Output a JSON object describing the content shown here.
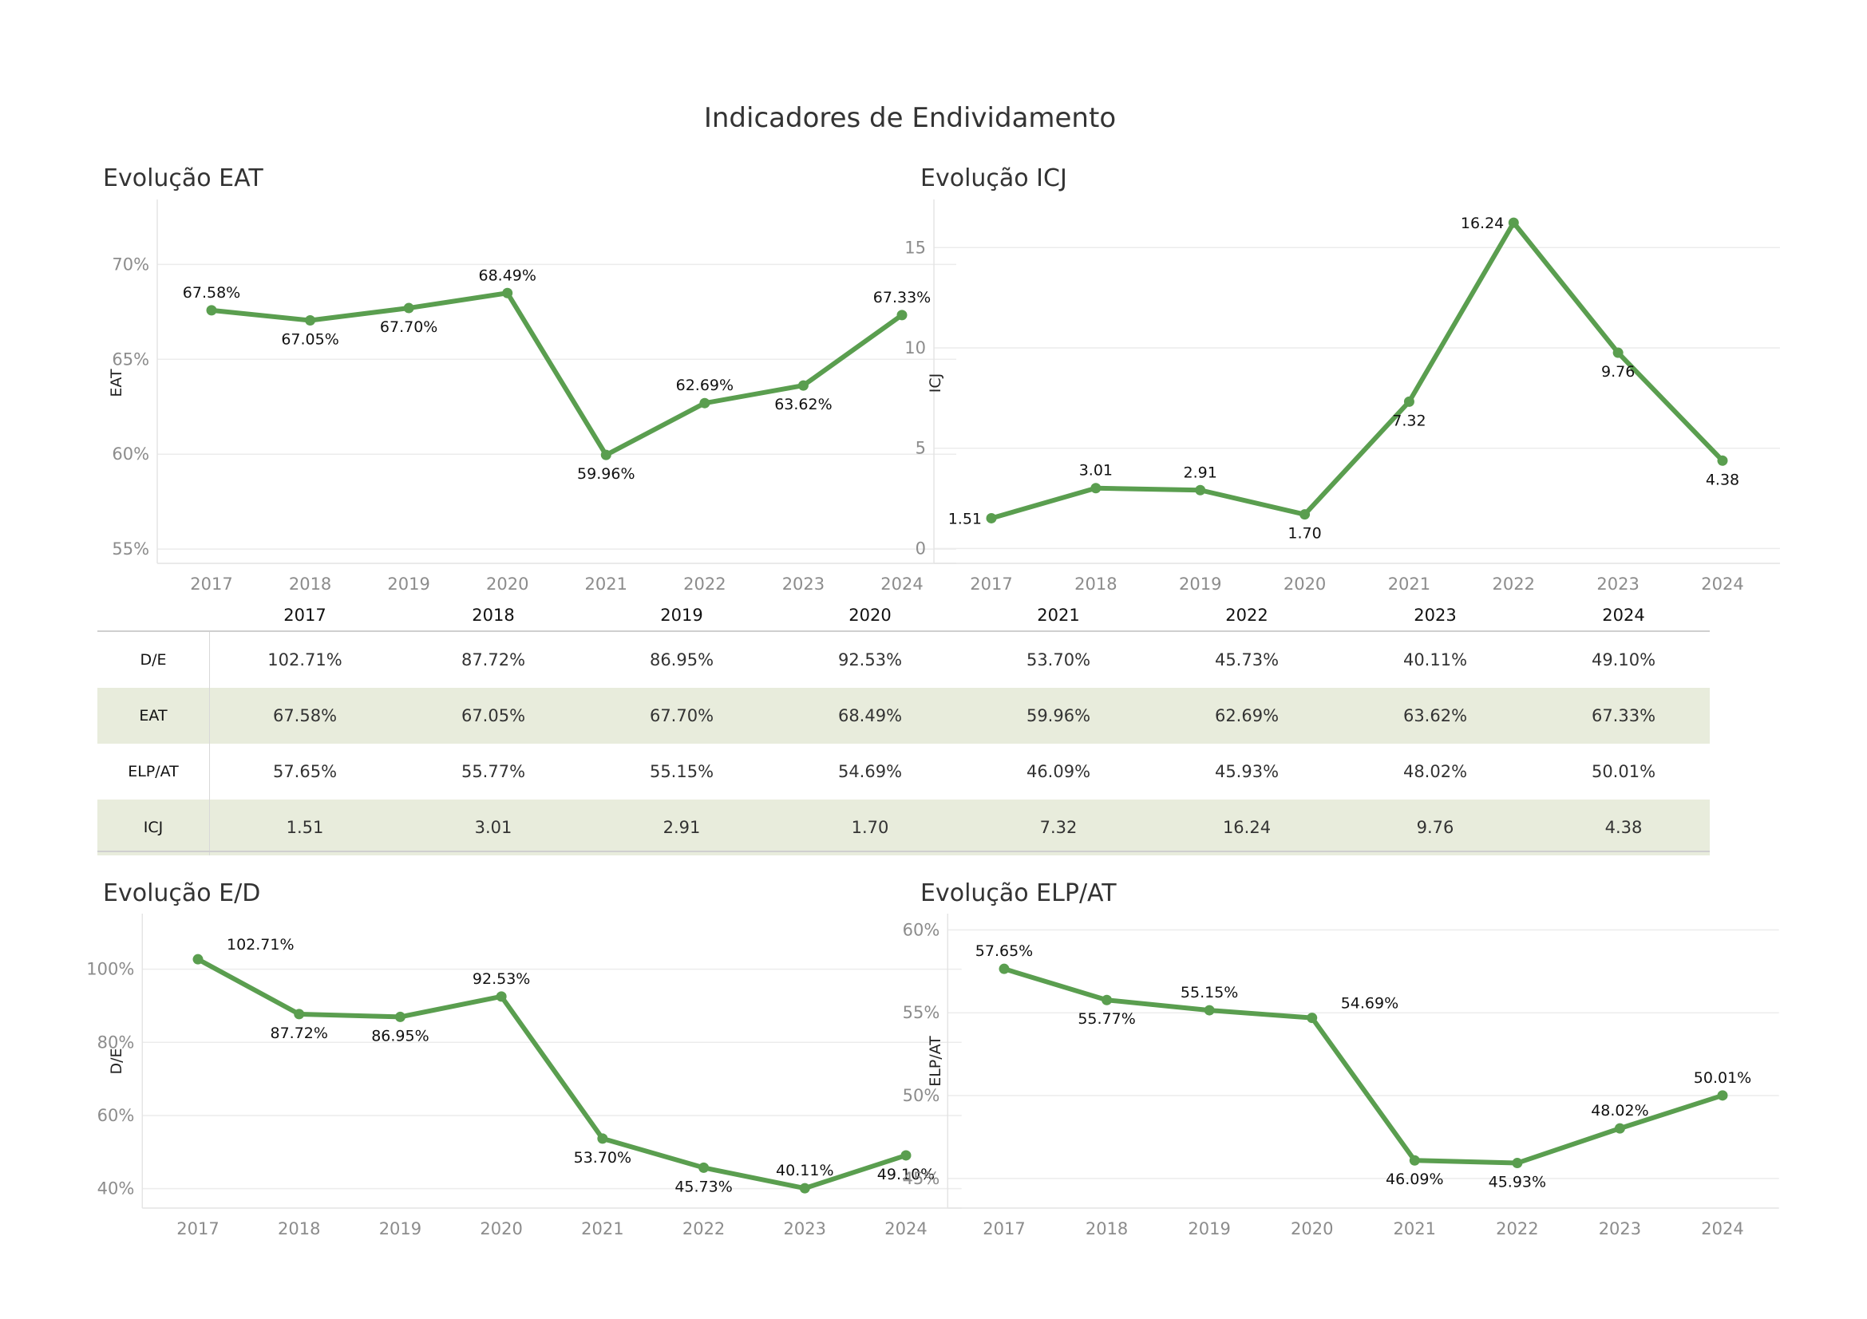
{
  "title": "Indicadores de Endividamento",
  "line_color": "#5a9e4f",
  "shade_color": "#e8ecdc",
  "table": {
    "years": [
      "2017",
      "2018",
      "2019",
      "2020",
      "2021",
      "2022",
      "2023",
      "2024"
    ],
    "rows": [
      {
        "label": "D/E",
        "values": [
          "102.71%",
          "87.72%",
          "86.95%",
          "92.53%",
          "53.70%",
          "45.73%",
          "40.11%",
          "49.10%"
        ]
      },
      {
        "label": "EAT",
        "values": [
          "67.58%",
          "67.05%",
          "67.70%",
          "68.49%",
          "59.96%",
          "62.69%",
          "63.62%",
          "67.33%"
        ]
      },
      {
        "label": "ELP/AT",
        "values": [
          "57.65%",
          "55.77%",
          "55.15%",
          "54.69%",
          "46.09%",
          "45.93%",
          "48.02%",
          "50.01%"
        ]
      },
      {
        "label": "ICJ",
        "values": [
          "1.51",
          "3.01",
          "2.91",
          "1.70",
          "7.32",
          "16.24",
          "9.76",
          "4.38"
        ]
      }
    ]
  },
  "chart_data": [
    {
      "id": "eat",
      "type": "line",
      "title": "Evolução EAT",
      "ylabel": "EAT",
      "x": [
        "2017",
        "2018",
        "2019",
        "2020",
        "2021",
        "2022",
        "2023",
        "2024"
      ],
      "values": [
        67.58,
        67.05,
        67.7,
        68.49,
        59.96,
        62.69,
        63.62,
        67.33
      ],
      "labels": [
        "67.58%",
        "67.05%",
        "67.70%",
        "68.49%",
        "59.96%",
        "62.69%",
        "63.62%",
        "67.33%"
      ],
      "label_pos": [
        "above",
        "below",
        "below",
        "above",
        "below",
        "above",
        "below",
        "above"
      ],
      "yticks": [
        55,
        60,
        65,
        70
      ],
      "ytick_labels": [
        "55%",
        "60%",
        "65%",
        "70%"
      ],
      "ylim": [
        54.5,
        73
      ],
      "grid": true
    },
    {
      "id": "icj",
      "type": "line",
      "title": "Evolução ICJ",
      "ylabel": "ICJ",
      "x": [
        "2017",
        "2018",
        "2019",
        "2020",
        "2021",
        "2022",
        "2023",
        "2024"
      ],
      "values": [
        1.51,
        3.01,
        2.91,
        1.7,
        7.32,
        16.24,
        9.76,
        4.38
      ],
      "labels": [
        "1.51",
        "3.01",
        "2.91",
        "1.70",
        "7.32",
        "16.24",
        "9.76",
        "4.38"
      ],
      "label_pos": [
        "left",
        "above",
        "above",
        "below",
        "below",
        "left",
        "below",
        "below"
      ],
      "yticks": [
        0,
        5,
        10,
        15
      ],
      "ytick_labels": [
        "0",
        "5",
        "10",
        "15"
      ],
      "ylim": [
        -0.5,
        17
      ],
      "grid": true
    },
    {
      "id": "de",
      "type": "line",
      "title": "Evolução E/D",
      "ylabel": "D/E",
      "x": [
        "2017",
        "2018",
        "2019",
        "2020",
        "2021",
        "2022",
        "2023",
        "2024"
      ],
      "values": [
        102.71,
        87.72,
        86.95,
        92.53,
        53.7,
        45.73,
        40.11,
        49.1
      ],
      "labels": [
        "102.71%",
        "87.72%",
        "86.95%",
        "92.53%",
        "53.70%",
        "45.73%",
        "40.11%",
        "49.10%"
      ],
      "label_pos": [
        "right",
        "below",
        "below",
        "above",
        "below",
        "below",
        "above",
        "below"
      ],
      "yticks": [
        40,
        60,
        80,
        100
      ],
      "ytick_labels": [
        "40%",
        "60%",
        "80%",
        "100%"
      ],
      "ylim": [
        36,
        113
      ],
      "grid": true
    },
    {
      "id": "elpat",
      "type": "line",
      "title": "Evolução ELP/AT",
      "ylabel": "ELP/AT",
      "x": [
        "2017",
        "2018",
        "2019",
        "2020",
        "2021",
        "2022",
        "2023",
        "2024"
      ],
      "values": [
        57.65,
        55.77,
        55.15,
        54.69,
        46.09,
        45.93,
        48.02,
        50.01
      ],
      "labels": [
        "57.65%",
        "55.77%",
        "55.15%",
        "54.69%",
        "46.09%",
        "45.93%",
        "48.02%",
        "50.01%"
      ],
      "label_pos": [
        "above",
        "below",
        "above",
        "right",
        "below",
        "below",
        "above",
        "above"
      ],
      "yticks": [
        45,
        50,
        55,
        60
      ],
      "ytick_labels": [
        "45%",
        "50%",
        "55%",
        "60%"
      ],
      "ylim": [
        43.5,
        60.5
      ],
      "grid": true
    }
  ]
}
